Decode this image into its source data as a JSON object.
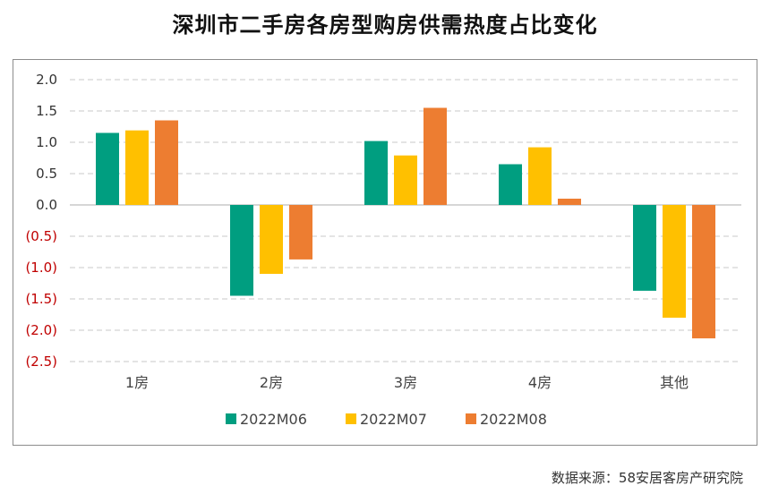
{
  "chart_data": {
    "type": "bar",
    "title": "深圳市二手房各房型购房供需热度占比变化",
    "categories": [
      "1房",
      "2房",
      "3房",
      "4房",
      "其他"
    ],
    "series": [
      {
        "name": "2022M06",
        "color": "#009e80",
        "values": [
          1.15,
          -1.45,
          1.02,
          0.65,
          -1.37
        ]
      },
      {
        "name": "2022M07",
        "color": "#ffc000",
        "values": [
          1.19,
          -1.1,
          0.79,
          0.92,
          -1.8
        ]
      },
      {
        "name": "2022M08",
        "color": "#ed7d31",
        "values": [
          1.35,
          -0.87,
          1.55,
          0.1,
          -2.13
        ]
      }
    ],
    "yticks": [
      "2.0",
      "1.5",
      "1.0",
      "0.5",
      "0.0",
      "(0.5)",
      "(1.0)",
      "(1.5)",
      "(2.0)",
      "(2.5)"
    ],
    "ytick_values": [
      2.0,
      1.5,
      1.0,
      0.5,
      0.0,
      -0.5,
      -1.0,
      -1.5,
      -2.0,
      -2.5
    ],
    "ylim": [
      -2.5,
      2.0
    ],
    "grid": true,
    "legend": "bottom",
    "positive_tick_color": "#333333",
    "negative_tick_color": "#c00000"
  },
  "source": "数据来源：58安居客房产研究院"
}
